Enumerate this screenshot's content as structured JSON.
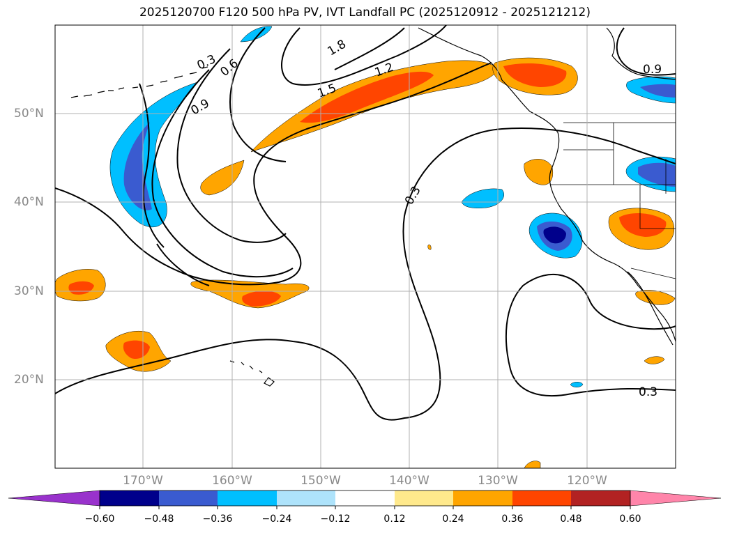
{
  "title": "2025120700 F120 500 hPa PV, IVT Landfall PC (2025120912 - 2025121212)",
  "lat_labels": [
    "50°N",
    "40°N",
    "30°N",
    "20°N"
  ],
  "lon_labels": [
    "170°W",
    "160°W",
    "150°W",
    "140°W",
    "130°W",
    "120°W"
  ],
  "contour_labels": [
    "0.3",
    "0.6",
    "0.9",
    "1.2",
    "1.5",
    "1.8",
    "0.3",
    "0.9",
    "0.3"
  ],
  "colorbar": {
    "tick_labels": [
      "−0.60",
      "−0.48",
      "−0.36",
      "−0.24",
      "−0.12",
      "0.12",
      "0.24",
      "0.36",
      "0.48",
      "0.60"
    ],
    "colors": [
      "#9932cc",
      "#00008b",
      "#3a5bd0",
      "#00bfff",
      "#aee3fb",
      "#ffffff",
      "#ffe98c",
      "#ffa500",
      "#ff4500",
      "#b22222",
      "#ff85aa"
    ]
  },
  "colors": {
    "neg_strong": "#00008b",
    "neg_mid": "#3a5bd0",
    "neg_weak": "#00bfff",
    "pos_weak": "#ffa500",
    "pos_mid": "#ff4500",
    "grid": "#b0b0b0"
  }
}
